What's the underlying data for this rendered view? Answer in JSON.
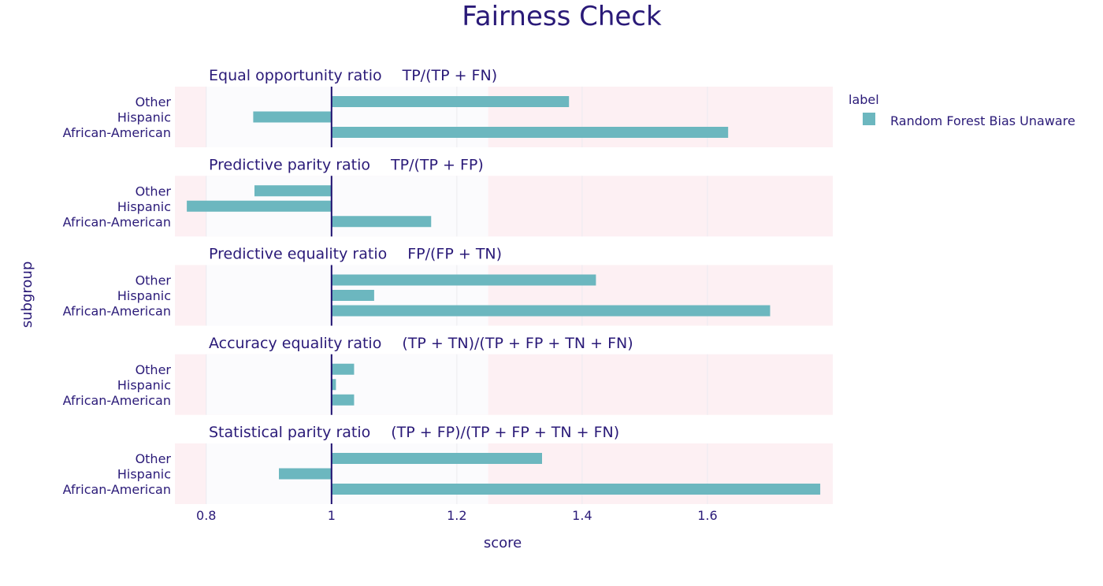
{
  "chart_data": {
    "type": "bar",
    "orientation": "horizontal",
    "title": "Fairness Check",
    "xlabel": "score",
    "ylabel": "subgroup",
    "xlim": [
      0.75,
      1.8
    ],
    "xticks": [
      0.8,
      1,
      1.2,
      1.4,
      1.6
    ],
    "xtick_labels": [
      "0.8",
      "1",
      "1.2",
      "1.4",
      "1.6"
    ],
    "reference_line": 1,
    "acceptable_band": [
      0.8,
      1.25
    ],
    "grid": true,
    "legend": {
      "title": "label",
      "position": "top-right",
      "entries": [
        {
          "name": "Random Forest Bias Unaware",
          "color": "#6cb7bf"
        }
      ]
    },
    "colors": {
      "bar": "#6cb7bf",
      "outside_band": "#fdf0f3",
      "inside_band": "#fbfbfd",
      "reference_line": "#1f1170",
      "text": "#2a1a78"
    },
    "categories": [
      "Other",
      "Hispanic",
      "African-American"
    ],
    "panels": [
      {
        "metric": "Equal opportunity ratio",
        "formula": "TP/(TP + FN)",
        "values": [
          1.379,
          0.875,
          1.633
        ]
      },
      {
        "metric": "Predictive parity ratio",
        "formula": "TP/(TP + FP)",
        "values": [
          0.877,
          0.769,
          1.159
        ]
      },
      {
        "metric": "Predictive equality ratio",
        "formula": "FP/(FP + TN)",
        "values": [
          1.422,
          1.068,
          1.7
        ]
      },
      {
        "metric": "Accuracy equality ratio",
        "formula": "(TP + TN)/(TP + FP + TN + FN)",
        "values": [
          1.036,
          1.007,
          1.036
        ]
      },
      {
        "metric": "Statistical parity ratio",
        "formula": "(TP + FP)/(TP + FP + TN + FN)",
        "values": [
          1.336,
          0.916,
          1.78
        ]
      }
    ]
  }
}
